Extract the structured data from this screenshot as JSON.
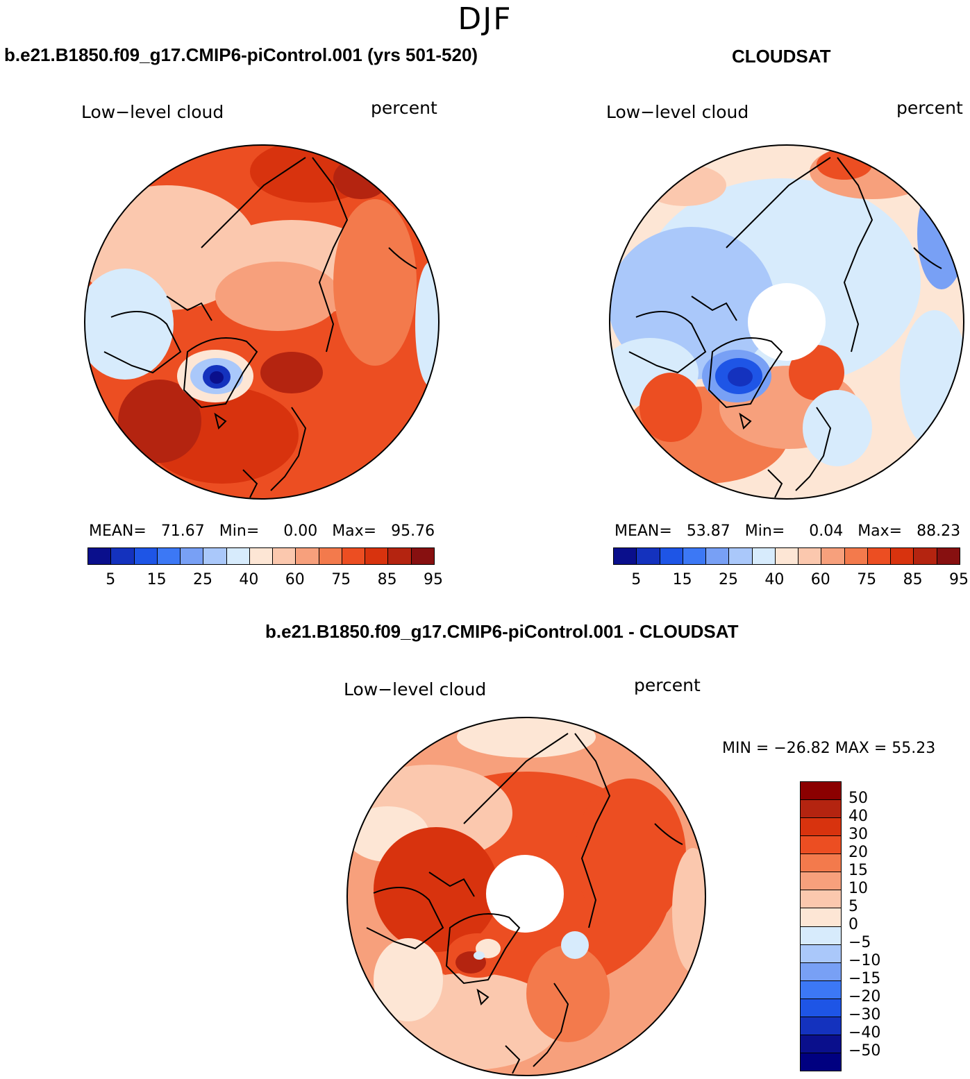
{
  "season": "DJF",
  "panels": [
    {
      "title": "b.e21.B1850.f09_g17.CMIP6-piControl.001 (yrs 501-520)",
      "variable": "Low−level cloud",
      "units": "percent",
      "stats": {
        "mean_label": "MEAN=",
        "mean": "71.67",
        "min_label": "Min=",
        "min": "0.00",
        "max_label": "Max=",
        "max": "95.76"
      }
    },
    {
      "title": "CLOUDSAT",
      "variable": "Low−level cloud",
      "units": "percent",
      "stats": {
        "mean_label": "MEAN=",
        "mean": "53.87",
        "min_label": "Min=",
        "min": "0.04",
        "max_label": "Max=",
        "max": "88.23"
      }
    },
    {
      "title": "b.e21.B1850.f09_g17.CMIP6-piControl.001 - CLOUDSAT",
      "variable": "Low−level cloud",
      "units": "percent",
      "stats_text": "MIN = −26.82  MAX =   55.23"
    }
  ],
  "field_colorbar": {
    "colors": [
      "#0a0f8c",
      "#1432be",
      "#1e55e6",
      "#3c78f5",
      "#78a0f5",
      "#aac8fa",
      "#d7ebfc",
      "#fde6d5",
      "#fbc8ae",
      "#f7a07c",
      "#f37a4c",
      "#ec4e22",
      "#d8330e",
      "#b42410",
      "#871010"
    ],
    "labels": [
      "5",
      "15",
      "25",
      "40",
      "60",
      "75",
      "85",
      "95"
    ]
  },
  "diff_colorbar": {
    "colors": [
      "#8b0000",
      "#b42410",
      "#d8330e",
      "#ec4e22",
      "#f37a4c",
      "#f7a07c",
      "#fbc8ae",
      "#fde6d5",
      "#d7ebfc",
      "#aac8fa",
      "#78a0f5",
      "#3c78f5",
      "#1e55e6",
      "#1432be",
      "#0a0f8c",
      "#000080"
    ],
    "labels": [
      "50",
      "40",
      "30",
      "20",
      "15",
      "10",
      "5",
      "0",
      "−5",
      "−10",
      "−15",
      "−20",
      "−30",
      "−40",
      "−50"
    ]
  }
}
